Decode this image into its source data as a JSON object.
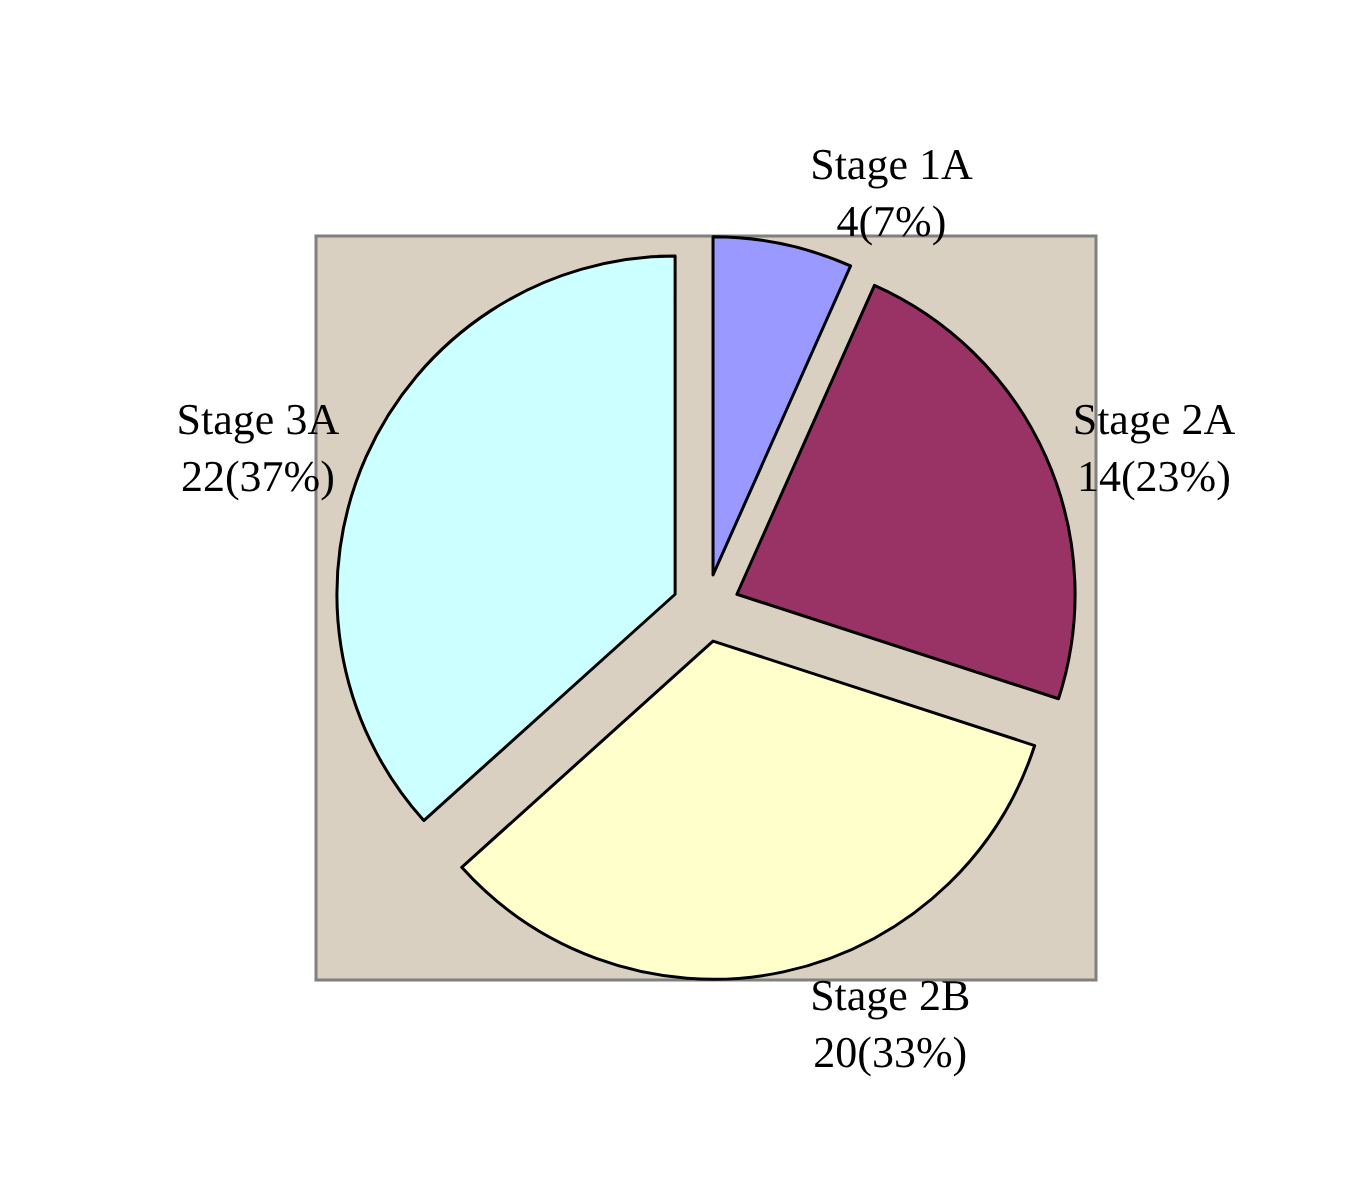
{
  "chart_data": {
    "type": "pie",
    "categories": [
      "Stage 1A",
      "Stage 2A",
      "Stage 2B",
      "Stage 3A"
    ],
    "values": [
      4,
      14,
      20,
      22
    ],
    "value_labels": [
      "4(7%)",
      "14(23%)",
      "20(33%)",
      "22(37%)"
    ],
    "colors": [
      "#9999ff",
      "#993366",
      "#ffffcc",
      "#ccffff"
    ],
    "legend": false
  }
}
